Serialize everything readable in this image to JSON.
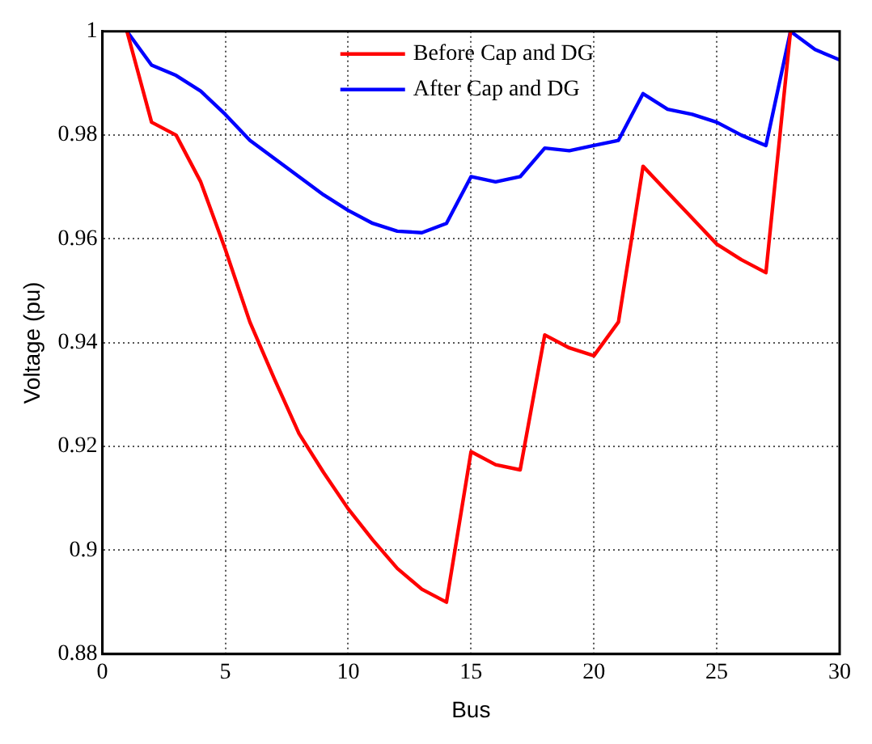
{
  "chart_data": {
    "type": "line",
    "xlabel": "Bus",
    "ylabel": "Voltage (pu)",
    "x": [
      1,
      2,
      3,
      4,
      5,
      6,
      7,
      8,
      9,
      10,
      11,
      12,
      13,
      14,
      15,
      16,
      17,
      18,
      19,
      20,
      21,
      22,
      23,
      24,
      25,
      26,
      27,
      28,
      29,
      30
    ],
    "series": [
      {
        "name": "Before Cap and DG",
        "color": "#ff0000",
        "values": [
          1,
          0.9825,
          0.98,
          0.971,
          0.958,
          0.944,
          0.933,
          0.9225,
          0.915,
          0.908,
          0.902,
          0.8965,
          0.8925,
          0.89,
          0.919,
          0.9165,
          0.9155,
          0.9415,
          0.939,
          0.9375,
          0.944,
          0.974,
          0.969,
          0.964,
          0.959,
          0.956,
          0.9535,
          1,
          null,
          null
        ]
      },
      {
        "name": "After Cap and DG",
        "color": "#0000ff",
        "values": [
          1,
          0.9935,
          0.9915,
          0.9885,
          0.984,
          0.979,
          0.9755,
          0.972,
          0.9685,
          0.9655,
          0.963,
          0.9615,
          0.9612,
          0.963,
          0.972,
          0.971,
          0.972,
          0.9775,
          0.977,
          0.978,
          0.979,
          0.988,
          0.985,
          0.984,
          0.9825,
          0.98,
          0.978,
          1,
          0.9965,
          0.9945
        ]
      }
    ],
    "xlim": [
      0,
      30
    ],
    "xticks": [
      0,
      5,
      10,
      15,
      20,
      25,
      30
    ],
    "ylim": [
      0.88,
      1
    ],
    "yticks": [
      0.88,
      0.9,
      0.92,
      0.94,
      0.96,
      0.98,
      1
    ],
    "grid": true,
    "legend": "top",
    "marker": "none",
    "line_style": "solid"
  }
}
